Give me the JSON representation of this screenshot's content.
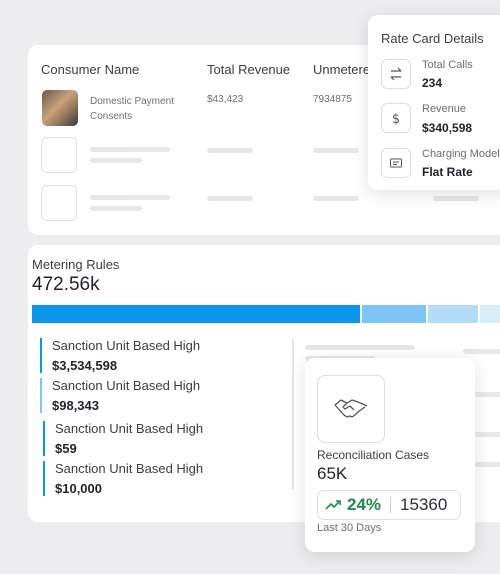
{
  "consumers_table": {
    "headers": [
      "Consumer Name",
      "Total Revenue",
      "Unmetere"
    ],
    "rows": [
      {
        "name": "Domestic Payment Consents",
        "revenue": "$43,423",
        "unmetered": "7934875"
      }
    ]
  },
  "rate_card": {
    "title": "Rate Card Details",
    "items": [
      {
        "label": "Total Calls",
        "value": "234"
      },
      {
        "label": "Revenue",
        "value": "$340,598"
      },
      {
        "label": "Charging Model",
        "value": "Flat Rate"
      }
    ]
  },
  "metering": {
    "title": "Metering Rules",
    "total": "472.56k",
    "rules": [
      {
        "name": "Sanction Unit Based High",
        "amount": "$3,534,598"
      },
      {
        "name": "Sanction Unit Based High",
        "amount": "$98,343"
      },
      {
        "name": "Sanction Unit Based High",
        "amount": "$59"
      },
      {
        "name": "Sanction Unit Based High",
        "amount": "$10,000"
      }
    ]
  },
  "reconciliation": {
    "title": "Reconciliation Cases",
    "value": "65K",
    "change": "24%",
    "count": "15360",
    "period": "Last 30 Days"
  }
}
